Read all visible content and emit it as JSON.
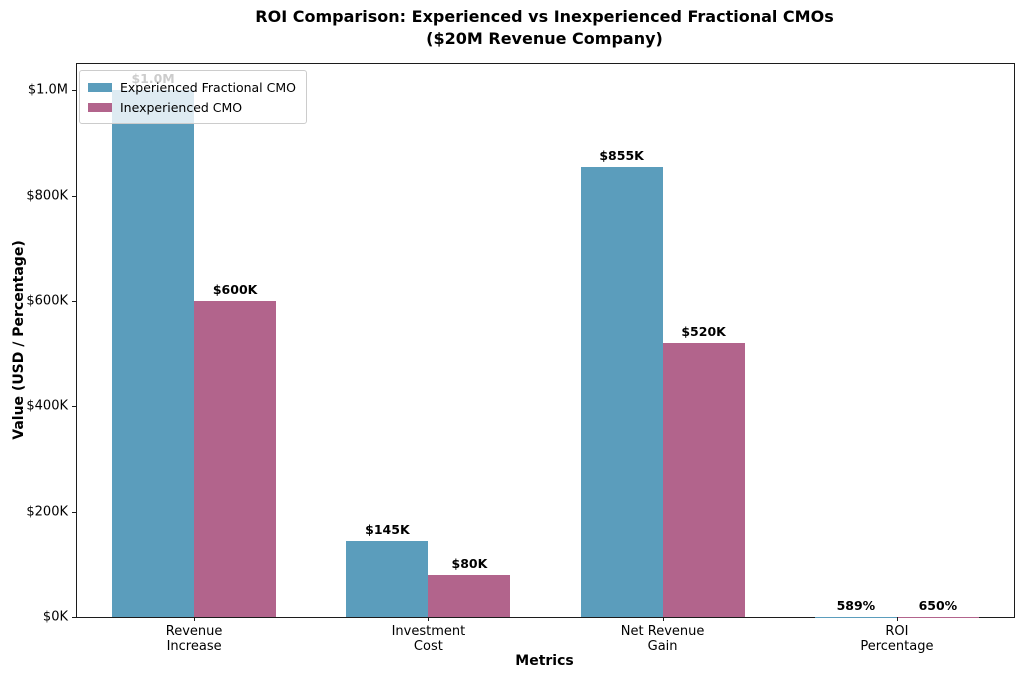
{
  "figure": {
    "title_line1": "ROI Comparison: Experienced vs Inexperienced Fractional CMOs",
    "title_line2": "($20M Revenue Company)"
  },
  "chart_data": {
    "type": "bar",
    "title": "ROI Comparison: Experienced vs Inexperienced Fractional CMOs ($20M Revenue Company)",
    "xlabel": "Metrics",
    "ylabel": "Value (USD / Percentage)",
    "categories": [
      "Revenue\nIncrease",
      "Investment\nCost",
      "Net Revenue\nGain",
      "ROI\nPercentage"
    ],
    "series": [
      {
        "name": "Experienced Fractional CMO",
        "color": "#5B9DBC",
        "values": [
          1000000,
          145000,
          855000,
          589
        ],
        "labels": [
          "$1.0M",
          "$145K",
          "$855K",
          "589%"
        ]
      },
      {
        "name": "Inexperienced CMO",
        "color": "#B2648C",
        "values": [
          600000,
          80000,
          520000,
          650
        ],
        "labels": [
          "$600K",
          "$80K",
          "$520K",
          "650%"
        ]
      }
    ],
    "ylim": [
      0,
      1050000
    ],
    "yticks": {
      "values": [
        0,
        200000,
        400000,
        600000,
        800000,
        1000000
      ],
      "labels": [
        "$0K",
        "$200K",
        "$400K",
        "$600K",
        "$800K",
        "$1.0M"
      ]
    },
    "grid": "off",
    "legend_position": "upper left"
  }
}
